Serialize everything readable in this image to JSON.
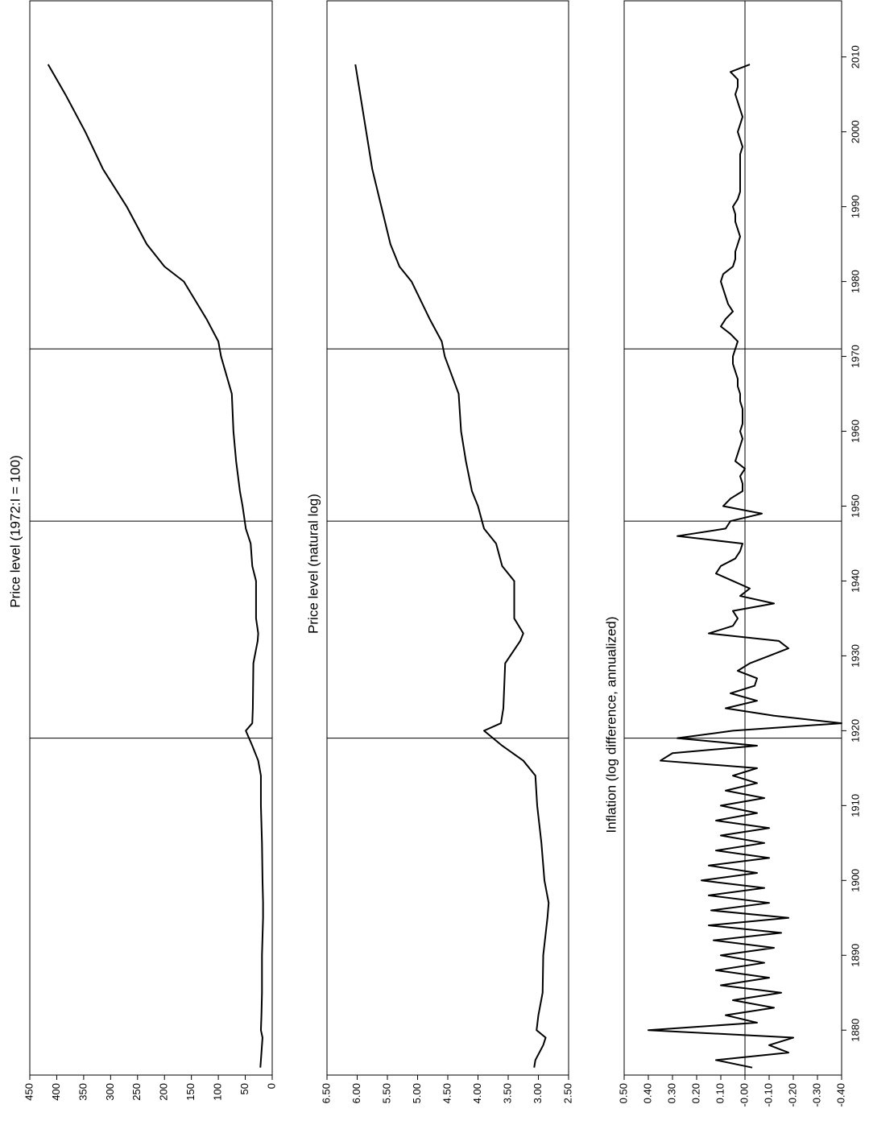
{
  "chart_data": [
    {
      "type": "line",
      "title": "Price level (1972:I = 100)",
      "x": [
        1875,
        1876,
        1878,
        1879,
        1880,
        1882,
        1885,
        1890,
        1895,
        1897,
        1900,
        1905,
        1910,
        1914,
        1916,
        1918,
        1920,
        1921,
        1923,
        1929,
        1932,
        1933,
        1935,
        1940,
        1942,
        1945,
        1947,
        1950,
        1952,
        1956,
        1960,
        1965,
        1970,
        1972,
        1975,
        1980,
        1982,
        1985,
        1990,
        1995,
        2000,
        2005,
        2009
      ],
      "values": [
        22,
        21,
        19,
        18,
        21,
        20,
        19,
        19,
        17,
        17,
        18,
        19,
        21,
        21,
        26,
        37,
        49,
        37,
        36,
        35,
        27,
        26,
        30,
        30,
        37,
        40,
        49,
        55,
        60,
        67,
        72,
        75,
        95,
        100,
        122,
        164,
        200,
        233,
        270,
        314,
        347,
        384,
        416
      ],
      "xlim": [
        1874,
        2017.5
      ],
      "ylim": [
        0,
        450
      ],
      "yticks": [
        0,
        50,
        100,
        150,
        200,
        250,
        300,
        350,
        400,
        450
      ],
      "vlines": [
        1919,
        1948,
        1971
      ]
    },
    {
      "type": "line",
      "title": "Price level (natural log)",
      "x": [
        1875,
        1876,
        1878,
        1879,
        1880,
        1882,
        1885,
        1890,
        1895,
        1897,
        1900,
        1905,
        1910,
        1914,
        1916,
        1918,
        1920,
        1921,
        1923,
        1929,
        1932,
        1933,
        1935,
        1940,
        1942,
        1945,
        1947,
        1950,
        1952,
        1956,
        1960,
        1965,
        1970,
        1972,
        1975,
        1980,
        1982,
        1985,
        1990,
        1995,
        2000,
        2005,
        2009
      ],
      "values": [
        3.07,
        3.05,
        2.92,
        2.88,
        3.03,
        3.0,
        2.93,
        2.92,
        2.85,
        2.83,
        2.9,
        2.95,
        3.02,
        3.05,
        3.25,
        3.6,
        3.9,
        3.62,
        3.58,
        3.55,
        3.3,
        3.25,
        3.4,
        3.4,
        3.6,
        3.7,
        3.9,
        4.0,
        4.1,
        4.2,
        4.28,
        4.32,
        4.55,
        4.6,
        4.8,
        5.1,
        5.3,
        5.45,
        5.6,
        5.75,
        5.85,
        5.95,
        6.03
      ],
      "xlim": [
        1874,
        2017.5
      ],
      "ylim": [
        2.5,
        6.5
      ],
      "yticks": [
        {
          "value": 2.5,
          "label": "2.50"
        },
        {
          "value": 3,
          "label": "3.00"
        },
        {
          "value": 3.5,
          "label": "3.50"
        },
        {
          "value": 4,
          "label": "4.00"
        },
        {
          "value": 4.5,
          "label": "4.50"
        },
        {
          "value": 5,
          "label": "5.00"
        },
        {
          "value": 5.5,
          "label": "5.50"
        },
        {
          "value": 6,
          "label": "6.00"
        },
        {
          "value": 6.5,
          "label": "6.50"
        }
      ],
      "vlines": [
        1919,
        1948,
        1971
      ]
    },
    {
      "type": "line",
      "title": "Inflation (log difference, annualized)",
      "x": [
        1875,
        1876,
        1877,
        1878,
        1879,
        1880,
        1881,
        1882,
        1883,
        1884,
        1885,
        1886,
        1887,
        1888,
        1889,
        1890,
        1891,
        1892,
        1893,
        1894,
        1895,
        1896,
        1897,
        1898,
        1899,
        1900,
        1901,
        1902,
        1903,
        1904,
        1905,
        1906,
        1907,
        1908,
        1909,
        1910,
        1911,
        1912,
        1913,
        1914,
        1915,
        1916,
        1917,
        1918,
        1919,
        1920,
        1921,
        1922,
        1923,
        1924,
        1925,
        1926,
        1927,
        1928,
        1929,
        1930,
        1931,
        1932,
        1933,
        1934,
        1935,
        1936,
        1937,
        1938,
        1939,
        1940,
        1941,
        1942,
        1943,
        1944,
        1945,
        1946,
        1947,
        1948,
        1949,
        1950,
        1951,
        1952,
        1953,
        1954,
        1955,
        1956,
        1957,
        1958,
        1959,
        1960,
        1961,
        1962,
        1963,
        1964,
        1965,
        1966,
        1967,
        1968,
        1969,
        1970,
        1971,
        1972,
        1973,
        1974,
        1975,
        1976,
        1977,
        1978,
        1979,
        1980,
        1981,
        1982,
        1983,
        1984,
        1985,
        1986,
        1987,
        1988,
        1989,
        1990,
        1991,
        1992,
        1993,
        1994,
        1995,
        1996,
        1997,
        1998,
        1999,
        2000,
        2001,
        2002,
        2003,
        2004,
        2005,
        2006,
        2007,
        2008,
        2009
      ],
      "values": [
        -0.03,
        0.12,
        -0.18,
        -0.1,
        -0.2,
        0.4,
        -0.05,
        0.08,
        -0.12,
        0.05,
        -0.15,
        0.1,
        -0.1,
        0.12,
        -0.08,
        0.1,
        -0.12,
        0.13,
        -0.15,
        0.15,
        -0.18,
        0.14,
        -0.1,
        0.15,
        -0.08,
        0.18,
        -0.05,
        0.15,
        -0.1,
        0.12,
        -0.08,
        0.1,
        -0.1,
        0.12,
        -0.05,
        0.1,
        -0.08,
        0.08,
        -0.05,
        0.05,
        -0.05,
        0.35,
        0.3,
        -0.05,
        0.28,
        0.05,
        -0.4,
        -0.12,
        0.08,
        -0.05,
        0.06,
        -0.04,
        -0.05,
        0.03,
        -0.02,
        -0.1,
        -0.18,
        -0.14,
        0.15,
        0.05,
        0.03,
        0.05,
        -0.12,
        0.02,
        -0.02,
        0.05,
        0.12,
        0.1,
        0.04,
        0.02,
        0.01,
        0.28,
        0.08,
        0.06,
        -0.07,
        0.09,
        0.06,
        0.01,
        0.01,
        0.02,
        0.0,
        0.04,
        0.03,
        0.02,
        0.01,
        0.02,
        0.01,
        0.01,
        0.01,
        0.02,
        0.02,
        0.03,
        0.03,
        0.04,
        0.05,
        0.05,
        0.04,
        0.03,
        0.06,
        0.1,
        0.08,
        0.05,
        0.07,
        0.08,
        0.09,
        0.1,
        0.09,
        0.05,
        0.04,
        0.04,
        0.03,
        0.02,
        0.03,
        0.04,
        0.04,
        0.05,
        0.03,
        0.02,
        0.02,
        0.02,
        0.02,
        0.02,
        0.02,
        0.01,
        0.02,
        0.03,
        0.02,
        0.01,
        0.02,
        0.03,
        0.04,
        0.03,
        0.03,
        0.06,
        -0.02
      ],
      "xlim": [
        1874,
        2017.5
      ],
      "ylim": [
        -0.4,
        0.5
      ],
      "yticks": [
        {
          "value": -0.4,
          "label": "-0.40"
        },
        {
          "value": -0.3,
          "label": "-0.30"
        },
        {
          "value": -0.2,
          "label": "-0.20"
        },
        {
          "value": -0.1,
          "label": "-0.10"
        },
        {
          "value": 0,
          "label": "-0.00"
        },
        {
          "value": 0.1,
          "label": "0.10"
        },
        {
          "value": 0.2,
          "label": "0.20"
        },
        {
          "value": 0.3,
          "label": "0.30"
        },
        {
          "value": 0.4,
          "label": "0.40"
        },
        {
          "value": 0.5,
          "label": "0.50"
        }
      ],
      "xticks": [
        1880,
        1890,
        1900,
        1910,
        1920,
        1930,
        1940,
        1950,
        1960,
        1970,
        1980,
        1990,
        2000,
        2010
      ],
      "vlines": [
        1919,
        1948,
        1971
      ],
      "zero_line": true
    }
  ]
}
